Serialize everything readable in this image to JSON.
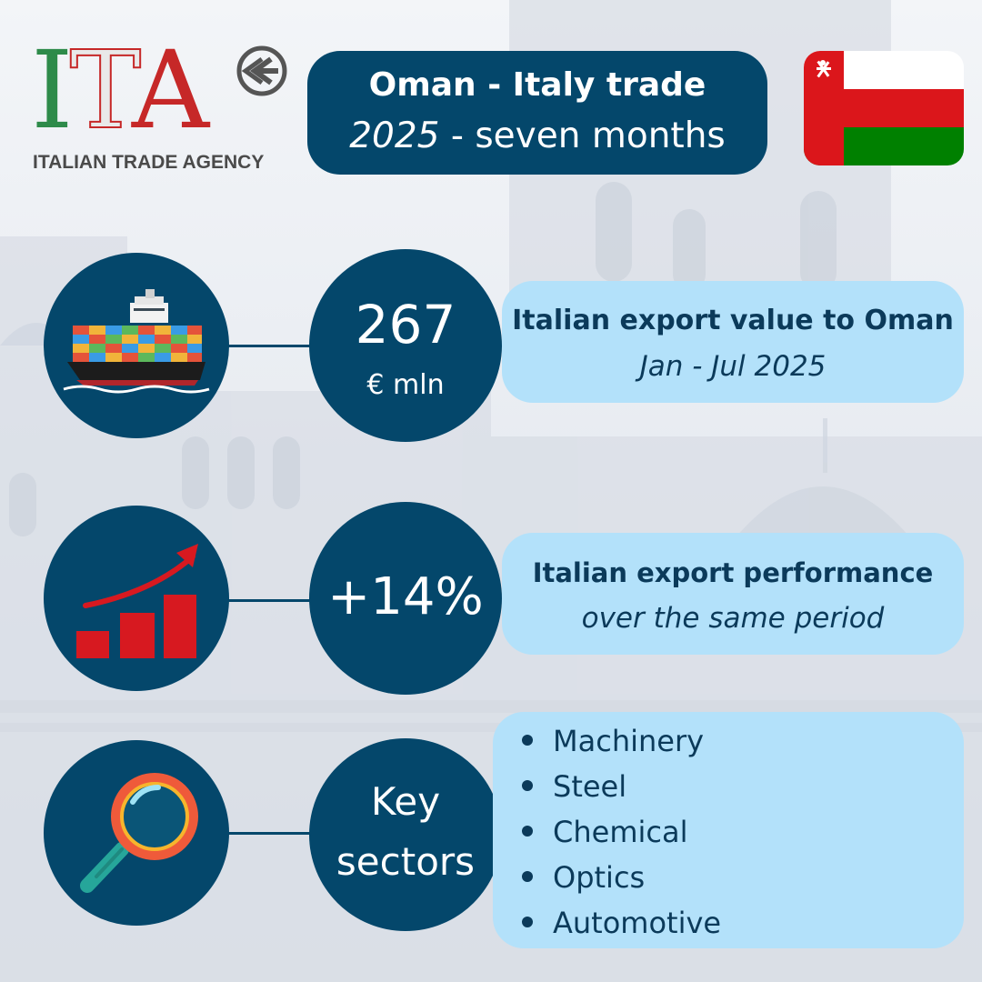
{
  "logo": {
    "letters": [
      "I",
      "T",
      "A"
    ],
    "subtitle": "ITALIAN TRADE AGENCY",
    "mark_icon": "ice-arrow-logo-icon"
  },
  "title": {
    "line1": "Oman - Italy trade",
    "year": "2025",
    "period": " - seven months"
  },
  "flag": {
    "icon": "oman-flag-icon",
    "colors": {
      "hoist": "#db161b",
      "top": "#ffffff",
      "middle": "#db161b",
      "bottom": "#008000"
    }
  },
  "rows": [
    {
      "icon": "container-ship-icon",
      "value": "267",
      "unit": "€ mln",
      "title": "Italian export value to Oman",
      "subtitle": "Jan - Jul 2025"
    },
    {
      "icon": "growth-chart-icon",
      "value": "+14%",
      "title": "Italian export performance",
      "subtitle": "over the same period"
    },
    {
      "icon": "magnifying-glass-icon",
      "value_line1": "Key",
      "value_line2": "sectors",
      "sectors": [
        "Machinery",
        "Steel",
        "Chemical",
        "Optics",
        "Automotive"
      ]
    }
  ],
  "colors": {
    "navy": "#04476b",
    "light_blue": "#b3e1fa",
    "text_dark": "#0b3a5a",
    "red": "#d71920",
    "green": "#2e8b4a"
  }
}
